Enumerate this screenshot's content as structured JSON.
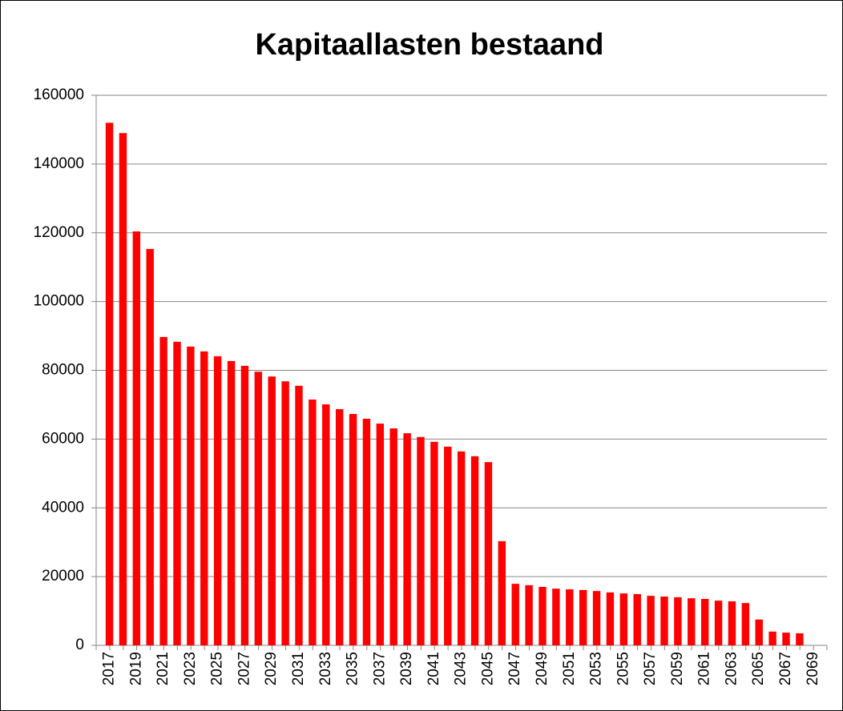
{
  "chart_data": {
    "type": "bar",
    "title": "Kapitaallasten bestaand",
    "categories": [
      "2017",
      null,
      "2019",
      null,
      "2021",
      null,
      "2023",
      null,
      "2025",
      null,
      "2027",
      null,
      "2029",
      null,
      "2031",
      null,
      "2033",
      null,
      "2035",
      null,
      "2037",
      null,
      "2039",
      null,
      "2041",
      null,
      "2043",
      null,
      "2045",
      null,
      "2047",
      null,
      "2049",
      null,
      "2051",
      null,
      "2053",
      null,
      "2055",
      null,
      "2057",
      null,
      "2059",
      null,
      "2061",
      null,
      "2063",
      null,
      "2065",
      null,
      "2067",
      null,
      "2069",
      null
    ],
    "values": [
      152000,
      149000,
      120400,
      115300,
      89700,
      88300,
      86900,
      85500,
      84100,
      82700,
      81300,
      79600,
      78200,
      76800,
      75500,
      71500,
      70100,
      68700,
      67300,
      65900,
      64500,
      63100,
      61700,
      60600,
      59200,
      57800,
      56400,
      55000,
      53300,
      30300,
      17900,
      17500,
      17000,
      16500,
      16300,
      16100,
      15800,
      15400,
      15100,
      14900,
      14400,
      14200,
      14000,
      13700,
      13500,
      13000,
      12800,
      12300,
      7500,
      4000,
      3700,
      3500,
      null,
      null
    ],
    "color": "#ff0000",
    "ylim": [
      0,
      160000
    ],
    "yticks": [
      0,
      20000,
      40000,
      60000,
      80000,
      100000,
      120000,
      140000,
      160000
    ],
    "grid": true
  }
}
